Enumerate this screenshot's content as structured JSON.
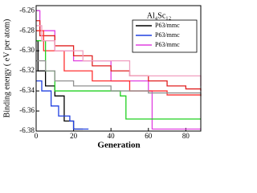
{
  "chart_data": {
    "type": "line",
    "step": true,
    "title": "Al₄Sc₁₂",
    "xlabel": "Generation",
    "ylabel": "Binding energy ( eV per atom)",
    "xlim": [
      0,
      88
    ],
    "xticks": [
      0,
      20,
      40,
      60,
      80
    ],
    "ylim": [
      -6.38,
      -6.255
    ],
    "yticks": [
      {
        "value": -6.38,
        "label": "-6.38"
      },
      {
        "value": -6.36,
        "label": "-6.36"
      },
      {
        "value": -6.34,
        "label": "-6.34"
      },
      {
        "value": -6.32,
        "label": "-6.32"
      },
      {
        "value": -6.3,
        "label": "-6.30"
      },
      {
        "value": -6.28,
        "label": "-6.28"
      },
      {
        "value": -6.26,
        "label": "-6.26"
      }
    ],
    "legend": "upper right",
    "series": [
      {
        "name": "P63/mmc",
        "color": "#000000",
        "x": [
          0,
          1,
          5,
          10,
          15,
          20,
          25
        ],
        "values": [
          -6.29,
          -6.32,
          -6.335,
          -6.345,
          -6.37,
          -6.378,
          -6.378
        ]
      },
      {
        "name": "P63/mmc",
        "color": "#2040e0",
        "x": [
          0,
          3,
          8,
          12,
          18,
          20,
          28
        ],
        "values": [
          -6.33,
          -6.34,
          -6.355,
          -6.365,
          -6.37,
          -6.378,
          -6.378
        ]
      },
      {
        "name": "P63/mmc",
        "color": "#e040e0",
        "x": [
          0,
          2,
          10,
          20,
          40,
          60,
          62,
          88
        ],
        "values": [
          -6.26,
          -6.28,
          -6.3,
          -6.31,
          -6.33,
          -6.34,
          -6.378,
          -6.378
        ]
      },
      {
        "color": "#e02020",
        "x": [
          0,
          2,
          10,
          20,
          30,
          40,
          50,
          60,
          70,
          80,
          88
        ],
        "values": [
          -6.27,
          -6.285,
          -6.295,
          -6.305,
          -6.315,
          -6.32,
          -6.325,
          -6.33,
          -6.335,
          -6.338,
          -6.34
        ]
      },
      {
        "color": "#ff3030",
        "x": [
          0,
          4,
          15,
          30,
          50,
          70,
          88
        ],
        "values": [
          -6.28,
          -6.3,
          -6.32,
          -6.33,
          -6.34,
          -6.344,
          -6.345
        ]
      },
      {
        "color": "#20d020",
        "x": [
          0,
          5,
          10,
          30,
          45,
          48,
          88
        ],
        "values": [
          -6.29,
          -6.32,
          -6.34,
          -6.34,
          -6.345,
          -6.368,
          -6.368
        ]
      },
      {
        "color": "#909090",
        "x": [
          0,
          5,
          10,
          20,
          40,
          60,
          88
        ],
        "values": [
          -6.31,
          -6.32,
          -6.33,
          -6.335,
          -6.34,
          -6.342,
          -6.345
        ]
      },
      {
        "color": "#f0a0c0",
        "x": [
          0,
          3,
          10,
          25,
          50,
          88
        ],
        "values": [
          -6.275,
          -6.29,
          -6.3,
          -6.31,
          -6.325,
          -6.335
        ]
      }
    ]
  }
}
